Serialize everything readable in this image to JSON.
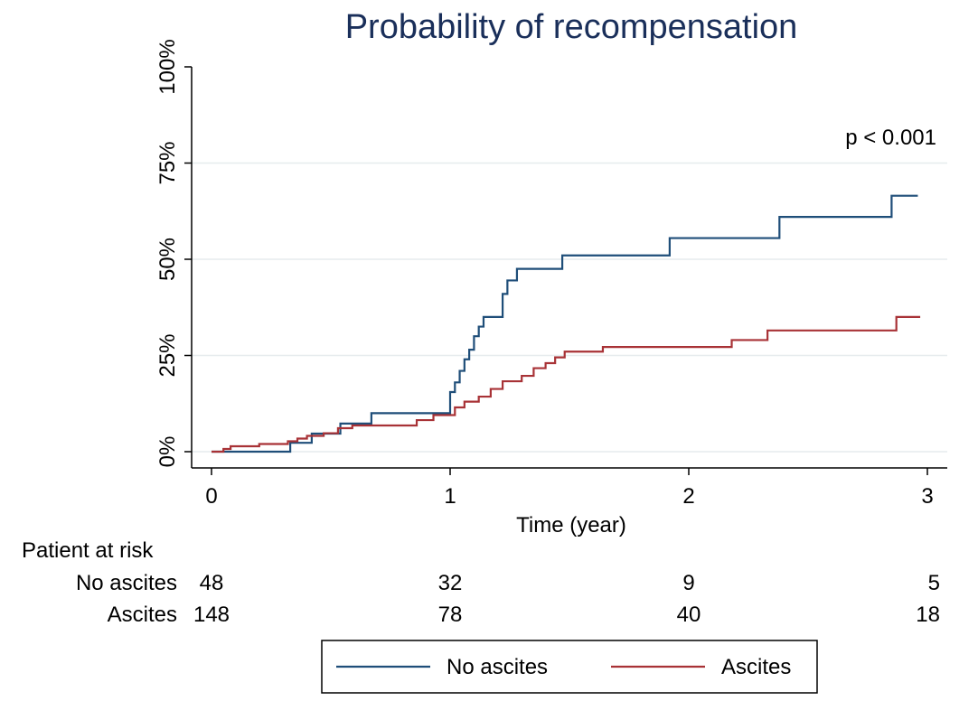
{
  "chart_data": {
    "type": "line",
    "title": "Probability of recompensation",
    "xlabel": "Time (year)",
    "ylabel": "",
    "xlim": [
      0,
      3
    ],
    "ylim": [
      0,
      1
    ],
    "xticks": [
      0,
      1,
      2,
      3
    ],
    "xtick_labels": [
      "0",
      "1",
      "2",
      "3"
    ],
    "yticks": [
      0,
      0.25,
      0.5,
      0.75,
      1.0
    ],
    "ytick_labels": [
      "0%",
      "25%",
      "50%",
      "75%",
      "100%"
    ],
    "grid": true,
    "annotation": "p < 0.001",
    "legend_position": "bottom",
    "series": [
      {
        "name": "No ascites",
        "color": "#1f4e79",
        "x": [
          0,
          0.33,
          0.35,
          0.42,
          0.54,
          0.67,
          1.0,
          1.02,
          1.04,
          1.06,
          1.08,
          1.1,
          1.12,
          1.14,
          1.16,
          1.22,
          1.24,
          1.28,
          1.29,
          1.47,
          1.92,
          2.38,
          2.85,
          2.96
        ],
        "y": [
          0,
          0.023,
          0.023,
          0.047,
          0.073,
          0.1,
          0.155,
          0.18,
          0.21,
          0.24,
          0.265,
          0.3,
          0.325,
          0.35,
          0.35,
          0.41,
          0.445,
          0.475,
          0.475,
          0.51,
          0.555,
          0.61,
          0.665,
          0.665
        ]
      },
      {
        "name": "Ascites",
        "color": "#a83236",
        "x": [
          0,
          0.05,
          0.08,
          0.2,
          0.32,
          0.36,
          0.4,
          0.47,
          0.53,
          0.59,
          0.86,
          0.93,
          1.02,
          1.06,
          1.12,
          1.17,
          1.22,
          1.3,
          1.35,
          1.4,
          1.44,
          1.48,
          1.64,
          2.18,
          2.33,
          2.87,
          2.97
        ],
        "y": [
          0,
          0.007,
          0.014,
          0.02,
          0.027,
          0.034,
          0.041,
          0.048,
          0.061,
          0.068,
          0.082,
          0.095,
          0.115,
          0.13,
          0.143,
          0.163,
          0.183,
          0.197,
          0.217,
          0.23,
          0.245,
          0.26,
          0.272,
          0.29,
          0.315,
          0.35,
          0.35
        ]
      }
    ]
  },
  "risk_table": {
    "header": "Patient at risk",
    "rows": [
      {
        "label": "No ascites",
        "counts": [
          "48",
          "32",
          "9",
          "5"
        ]
      },
      {
        "label": "Ascites",
        "counts": [
          "148",
          "78",
          "40",
          "18"
        ]
      }
    ]
  }
}
